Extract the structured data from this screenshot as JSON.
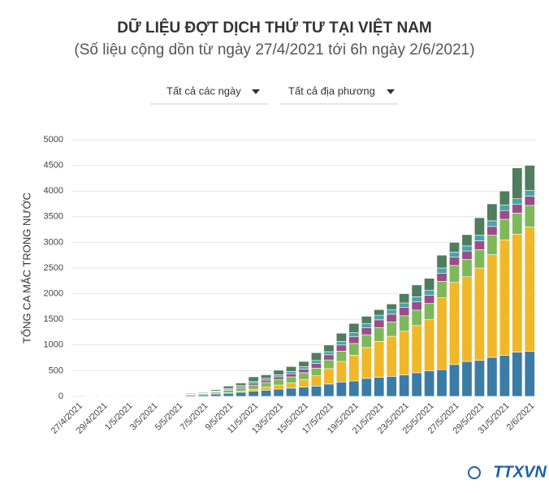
{
  "chart_data": {
    "type": "stacked_bar",
    "title": "DỮ LIỆU ĐỢT DỊCH THỨ TƯ TẠI VIỆT NAM",
    "subtitle": "(Số liệu cộng dồn từ ngày 27/4/2021 tới 6h ngày 2/6/2021)",
    "filters": [
      "Tất cả các ngày",
      "Tất cả địa phương"
    ],
    "y_label": "TỔNG CA MẮC TRONG NƯỚC",
    "branding": "TTXVN",
    "categories": [
      "27/4/2021",
      null,
      "29/4/2021",
      null,
      "1/5/2021",
      null,
      "3/5/2021",
      null,
      "5/5/2021",
      null,
      "7/5/2021",
      null,
      "9/5/2021",
      null,
      "11/5/2021",
      null,
      "13/5/2021",
      null,
      "15/5/2021",
      null,
      "17/5/2021",
      null,
      "19/5/2021",
      null,
      "21/5/2021",
      null,
      "23/5/2021",
      null,
      "25/5/2021",
      null,
      "27/5/2021",
      null,
      "29/5/2021",
      null,
      "31/5/2021",
      null,
      "2/6/2021"
    ],
    "series": [
      {
        "color": "#3b7ca6",
        "values": [
          0,
          1,
          1,
          2,
          2,
          3,
          3,
          4,
          6,
          20,
          30,
          45,
          60,
          80,
          100,
          120,
          140,
          160,
          180,
          200,
          240,
          280,
          300,
          350,
          370,
          390,
          420,
          460,
          500,
          520,
          620,
          680,
          700,
          760,
          800,
          860,
          880
        ]
      },
      {
        "color": "#f0b72a",
        "values": [
          0,
          0,
          0,
          0,
          0,
          0,
          0,
          0,
          0,
          0,
          0,
          5,
          10,
          20,
          40,
          60,
          80,
          100,
          150,
          200,
          300,
          400,
          500,
          600,
          700,
          780,
          850,
          920,
          1000,
          1400,
          1600,
          1650,
          1800,
          2000,
          2250,
          2300,
          2420
        ]
      },
      {
        "color": "#7db95b",
        "values": [
          0,
          0,
          0,
          0,
          0,
          0,
          0,
          0,
          3,
          15,
          20,
          30,
          50,
          60,
          80,
          90,
          110,
          120,
          130,
          150,
          170,
          200,
          230,
          250,
          270,
          280,
          300,
          300,
          310,
          320,
          330,
          340,
          360,
          380,
          400,
          410,
          420
        ]
      },
      {
        "color": "#9a4d88",
        "values": [
          0,
          0,
          0,
          0,
          0,
          0,
          0,
          0,
          0,
          5,
          10,
          15,
          20,
          30,
          40,
          45,
          50,
          60,
          70,
          90,
          100,
          120,
          130,
          140,
          150,
          150,
          160,
          160,
          160,
          160,
          160,
          160,
          170,
          170,
          170,
          170,
          180
        ]
      },
      {
        "color": "#4aa3a8",
        "values": [
          0,
          0,
          0,
          0,
          0,
          0,
          0,
          0,
          0,
          5,
          5,
          10,
          15,
          20,
          30,
          35,
          40,
          45,
          50,
          60,
          60,
          70,
          80,
          80,
          90,
          90,
          90,
          100,
          100,
          100,
          100,
          100,
          110,
          110,
          110,
          110,
          110
        ]
      },
      {
        "color": "#4f7d5e",
        "values": [
          0,
          1,
          2,
          2,
          3,
          3,
          4,
          6,
          6,
          15,
          15,
          25,
          45,
          50,
          90,
          70,
          90,
          95,
          100,
          150,
          130,
          160,
          180,
          140,
          110,
          110,
          180,
          230,
          230,
          250,
          190,
          220,
          340,
          330,
          270,
          600,
          490
        ]
      }
    ],
    "ylim": [
      0,
      5000
    ],
    "yticks": [
      0,
      500,
      1000,
      1500,
      2000,
      2500,
      3000,
      3500,
      4000,
      4500,
      5000
    ],
    "grid": true
  }
}
